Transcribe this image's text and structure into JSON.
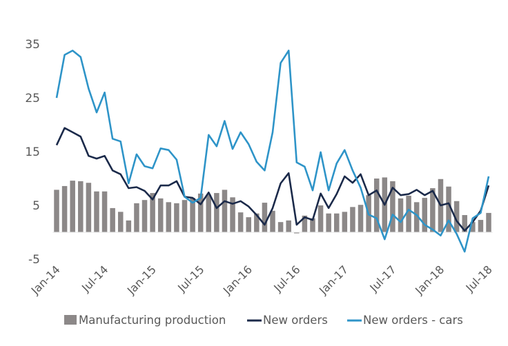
{
  "chart_data": {
    "type": "bar",
    "title": "",
    "xlabel": "",
    "ylabel": "",
    "ylim": [
      -5,
      35
    ],
    "yticks": [
      -5,
      5,
      15,
      25,
      35
    ],
    "ytick_labels": [
      "-5",
      "5",
      "15",
      "25",
      "35"
    ],
    "grid": false,
    "legend_position": "bottom",
    "x": [
      "Jan-14",
      "Feb-14",
      "Mar-14",
      "Apr-14",
      "May-14",
      "Jun-14",
      "Jul-14",
      "Aug-14",
      "Sep-14",
      "Oct-14",
      "Nov-14",
      "Dec-14",
      "Jan-15",
      "Feb-15",
      "Mar-15",
      "Apr-15",
      "May-15",
      "Jun-15",
      "Jul-15",
      "Aug-15",
      "Sep-15",
      "Oct-15",
      "Nov-15",
      "Dec-15",
      "Jan-16",
      "Feb-16",
      "Mar-16",
      "Apr-16",
      "May-16",
      "Jun-16",
      "Jul-16",
      "Aug-16",
      "Sep-16",
      "Oct-16",
      "Nov-16",
      "Dec-16",
      "Jan-17",
      "Feb-17",
      "Mar-17",
      "Apr-17",
      "May-17",
      "Jun-17",
      "Jul-17",
      "Aug-17",
      "Sep-17",
      "Oct-17",
      "Nov-17",
      "Dec-17",
      "Jan-18",
      "Feb-18",
      "Mar-18",
      "Apr-18",
      "May-18",
      "Jun-18",
      "Jul-18"
    ],
    "xtick_labels": [
      "Jan-14",
      "Jul-14",
      "Jan-15",
      "Jul-15",
      "Jan-16",
      "Jul-16",
      "Jan-17",
      "Jul-17",
      "Jan-18",
      "Jul-18"
    ],
    "series": [
      {
        "name": "Manufacturing production",
        "type": "bar",
        "color": "#8c8888",
        "values": [
          7.9,
          8.6,
          9.6,
          9.5,
          9.2,
          7.6,
          7.6,
          4.5,
          3.8,
          2.2,
          5.4,
          6.0,
          7.3,
          6.3,
          5.6,
          5.4,
          6.0,
          6.4,
          7.2,
          7.0,
          7.3,
          7.9,
          6.5,
          3.7,
          2.8,
          3.5,
          5.5,
          4.0,
          1.9,
          2.2,
          -0.2,
          3.1,
          2.6,
          5.0,
          3.5,
          3.5,
          3.8,
          4.7,
          5.1,
          6.9,
          10.0,
          10.2,
          9.5,
          6.3,
          6.8,
          5.6,
          6.4,
          8.2,
          9.9,
          8.5,
          5.8,
          3.2,
          1.9,
          2.3,
          3.6
        ]
      },
      {
        "name": "New orders",
        "type": "line",
        "color": "#1b2a4a",
        "values": [
          16.2,
          19.4,
          18.6,
          17.8,
          14.2,
          13.7,
          14.2,
          11.5,
          10.8,
          8.2,
          8.4,
          7.7,
          6.1,
          8.7,
          8.7,
          9.5,
          6.6,
          6.4,
          5.2,
          7.4,
          4.5,
          5.8,
          5.3,
          5.8,
          4.8,
          3.2,
          1.4,
          4.5,
          9.1,
          11.0,
          1.4,
          2.8,
          2.3,
          7.2,
          4.5,
          7.1,
          10.4,
          9.2,
          10.8,
          6.9,
          7.8,
          5.1,
          8.3,
          6.9,
          7.1,
          7.9,
          6.9,
          7.7,
          5.0,
          5.4,
          2.1,
          0.3,
          1.9,
          4.0,
          8.7
        ]
      },
      {
        "name": "New orders - cars",
        "type": "line",
        "color": "#2e94c8",
        "values": [
          25.0,
          33.0,
          33.8,
          32.6,
          26.7,
          22.3,
          26.0,
          17.4,
          16.9,
          9.1,
          14.5,
          12.3,
          11.9,
          15.6,
          15.3,
          13.5,
          6.6,
          5.5,
          6.4,
          18.1,
          16.0,
          20.7,
          15.5,
          18.6,
          16.4,
          13.1,
          11.5,
          18.6,
          31.5,
          33.8,
          13.0,
          12.2,
          7.8,
          14.9,
          7.8,
          12.8,
          15.3,
          11.5,
          8.3,
          3.3,
          2.6,
          -1.3,
          3.3,
          1.9,
          4.2,
          3.2,
          1.4,
          0.5,
          -0.6,
          2.2,
          -0.3,
          -3.6,
          2.6,
          3.6,
          10.4
        ]
      }
    ]
  },
  "legend": {
    "items": [
      {
        "label": "Manufacturing production",
        "marker": "square",
        "color": "#8c8888"
      },
      {
        "label": "New orders",
        "marker": "line",
        "color": "#1b2a4a"
      },
      {
        "label": "New orders - cars",
        "marker": "line",
        "color": "#2e94c8"
      }
    ]
  }
}
